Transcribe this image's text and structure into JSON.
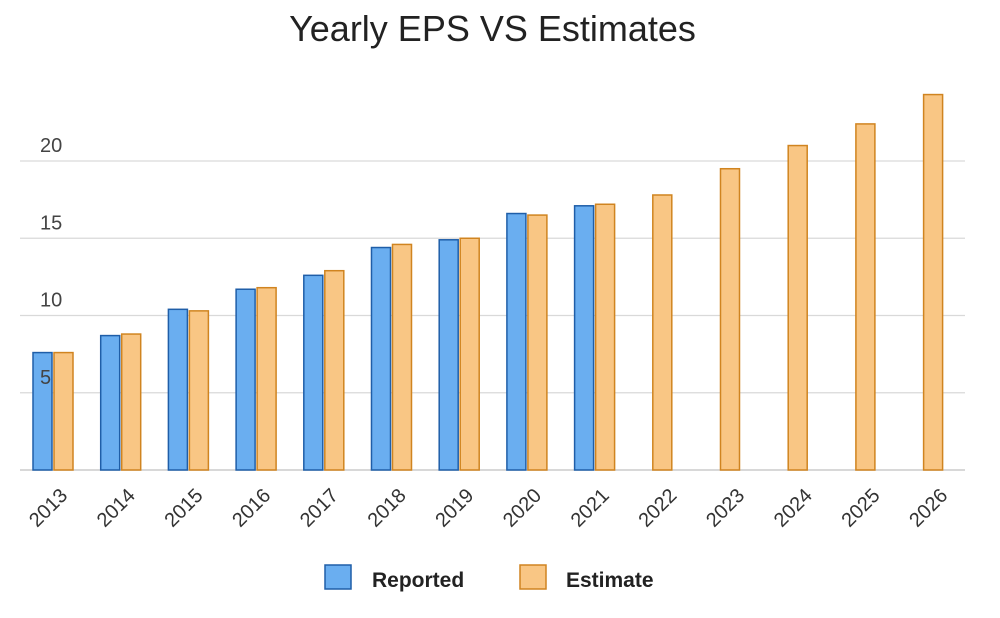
{
  "chart_data": {
    "type": "bar",
    "title": "Yearly EPS VS Estimates",
    "xlabel": "",
    "ylabel": "",
    "categories": [
      "2013",
      "2014",
      "2015",
      "2016",
      "2017",
      "2018",
      "2019",
      "2020",
      "2021",
      "2022",
      "2023",
      "2024",
      "2025",
      "2026"
    ],
    "series": [
      {
        "name": "Reported",
        "color": "#6aaef0",
        "stroke": "#1f5ea8",
        "values": [
          7.6,
          8.7,
          10.4,
          11.7,
          12.6,
          14.4,
          14.9,
          16.6,
          17.1,
          null,
          null,
          null,
          null,
          null
        ]
      },
      {
        "name": "Estimate",
        "color": "#f9c684",
        "stroke": "#d08420",
        "values": [
          7.6,
          8.8,
          10.3,
          11.8,
          12.9,
          14.6,
          15.0,
          16.5,
          17.2,
          17.8,
          19.5,
          21.0,
          22.4,
          24.3
        ]
      }
    ],
    "yticks": [
      5,
      10,
      15,
      20
    ],
    "ylim": [
      0,
      25
    ],
    "grid": true,
    "legend_position": "bottom-center"
  }
}
